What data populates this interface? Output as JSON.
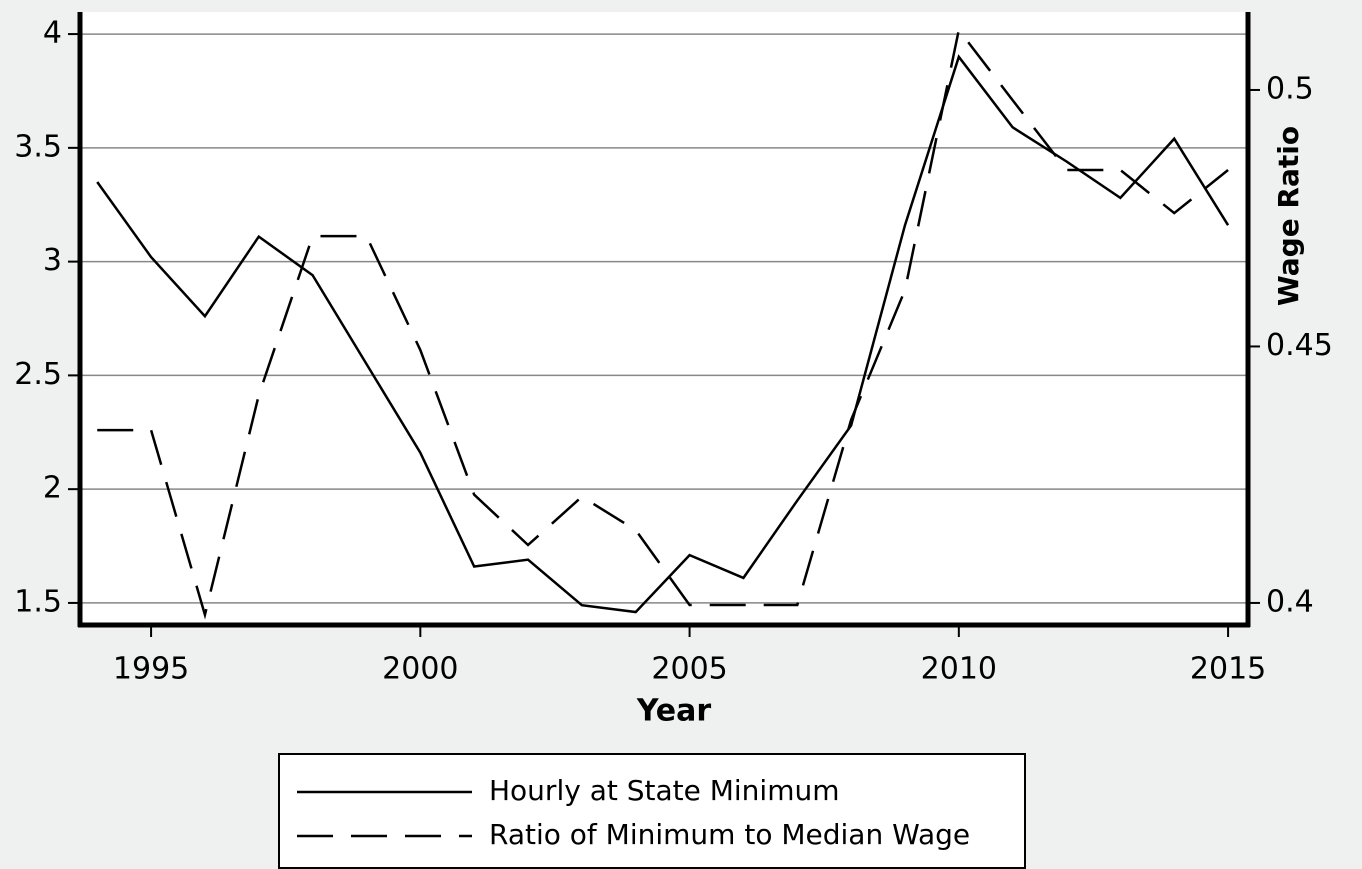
{
  "chart_data": {
    "type": "line",
    "x_label": "Year",
    "y2_label": "Wage Ratio",
    "x": [
      1994,
      1995,
      1996,
      1997,
      1998,
      1999,
      2000,
      2001,
      2002,
      2003,
      2004,
      2005,
      2006,
      2007,
      2008,
      2009,
      2010,
      2011,
      2012,
      2013,
      2014,
      2015
    ],
    "series": [
      {
        "name": "Hourly at State Minimum",
        "color": "#000000",
        "dash": "solid",
        "values": [
          3.35,
          3.02,
          2.76,
          3.11,
          2.94,
          2.55,
          2.16,
          1.66,
          1.69,
          1.49,
          1.46,
          1.71,
          1.61,
          1.95,
          2.28,
          3.16,
          3.9,
          3.59,
          3.44,
          3.28,
          3.54,
          3.16
        ]
      },
      {
        "name": "Ratio of Minimum to Median Wage",
        "color": "#000000",
        "dash": "dashed",
        "axis": "y2",
        "values": [
          0.4337,
          0.4337,
          0.3977,
          0.4405,
          0.4715,
          0.4715,
          0.4493,
          0.4211,
          0.4113,
          0.4207,
          0.4142,
          0.3996,
          0.3996,
          0.3996,
          0.4357,
          0.461,
          0.5117,
          0.498,
          0.4844,
          0.4844,
          0.476,
          0.4844
        ]
      }
    ],
    "xlim": [
      1993.68,
      2015.37
    ],
    "xticks": [
      1995,
      2000,
      2005,
      2010,
      2015
    ],
    "ylim": [
      1.403,
      4.097
    ],
    "yticks": [
      1.5,
      2,
      2.5,
      3,
      3.5,
      4
    ],
    "y2lim": [
      0.3957,
      0.5152
    ],
    "y2ticks": [
      0.4,
      0.45,
      0.5
    ],
    "grid": true,
    "legend": "bottom"
  }
}
